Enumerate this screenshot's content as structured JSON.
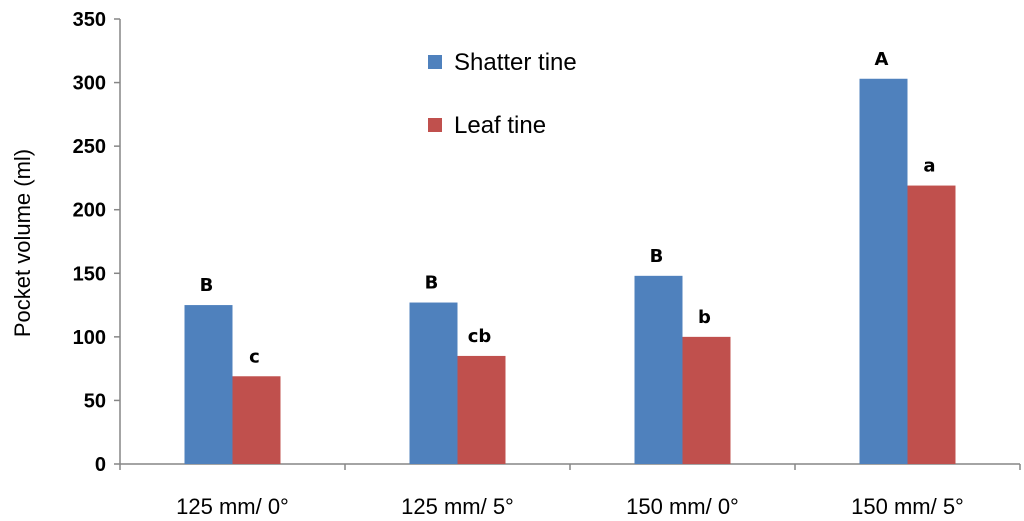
{
  "chart_data": {
    "type": "bar",
    "categories": [
      "125 mm/ 0°",
      "125 mm/ 5°",
      "150 mm/ 0°",
      "150 mm/ 5°"
    ],
    "series": [
      {
        "name": "Shatter tine",
        "values": [
          125,
          127,
          148,
          303
        ],
        "labels": [
          "B",
          "B",
          "B",
          "A"
        ],
        "color": "#4f81bd"
      },
      {
        "name": "Leaf tine",
        "values": [
          69,
          85,
          100,
          219
        ],
        "labels": [
          "c",
          "cb",
          "b",
          "a"
        ],
        "color": "#c0504d"
      }
    ],
    "ylabel": "Pocket volume (ml)",
    "xlabel": "",
    "ylim": [
      0,
      350
    ],
    "yticks": [
      0,
      50,
      100,
      150,
      200,
      250,
      300,
      350
    ],
    "grid": false,
    "legend": "top-center"
  }
}
